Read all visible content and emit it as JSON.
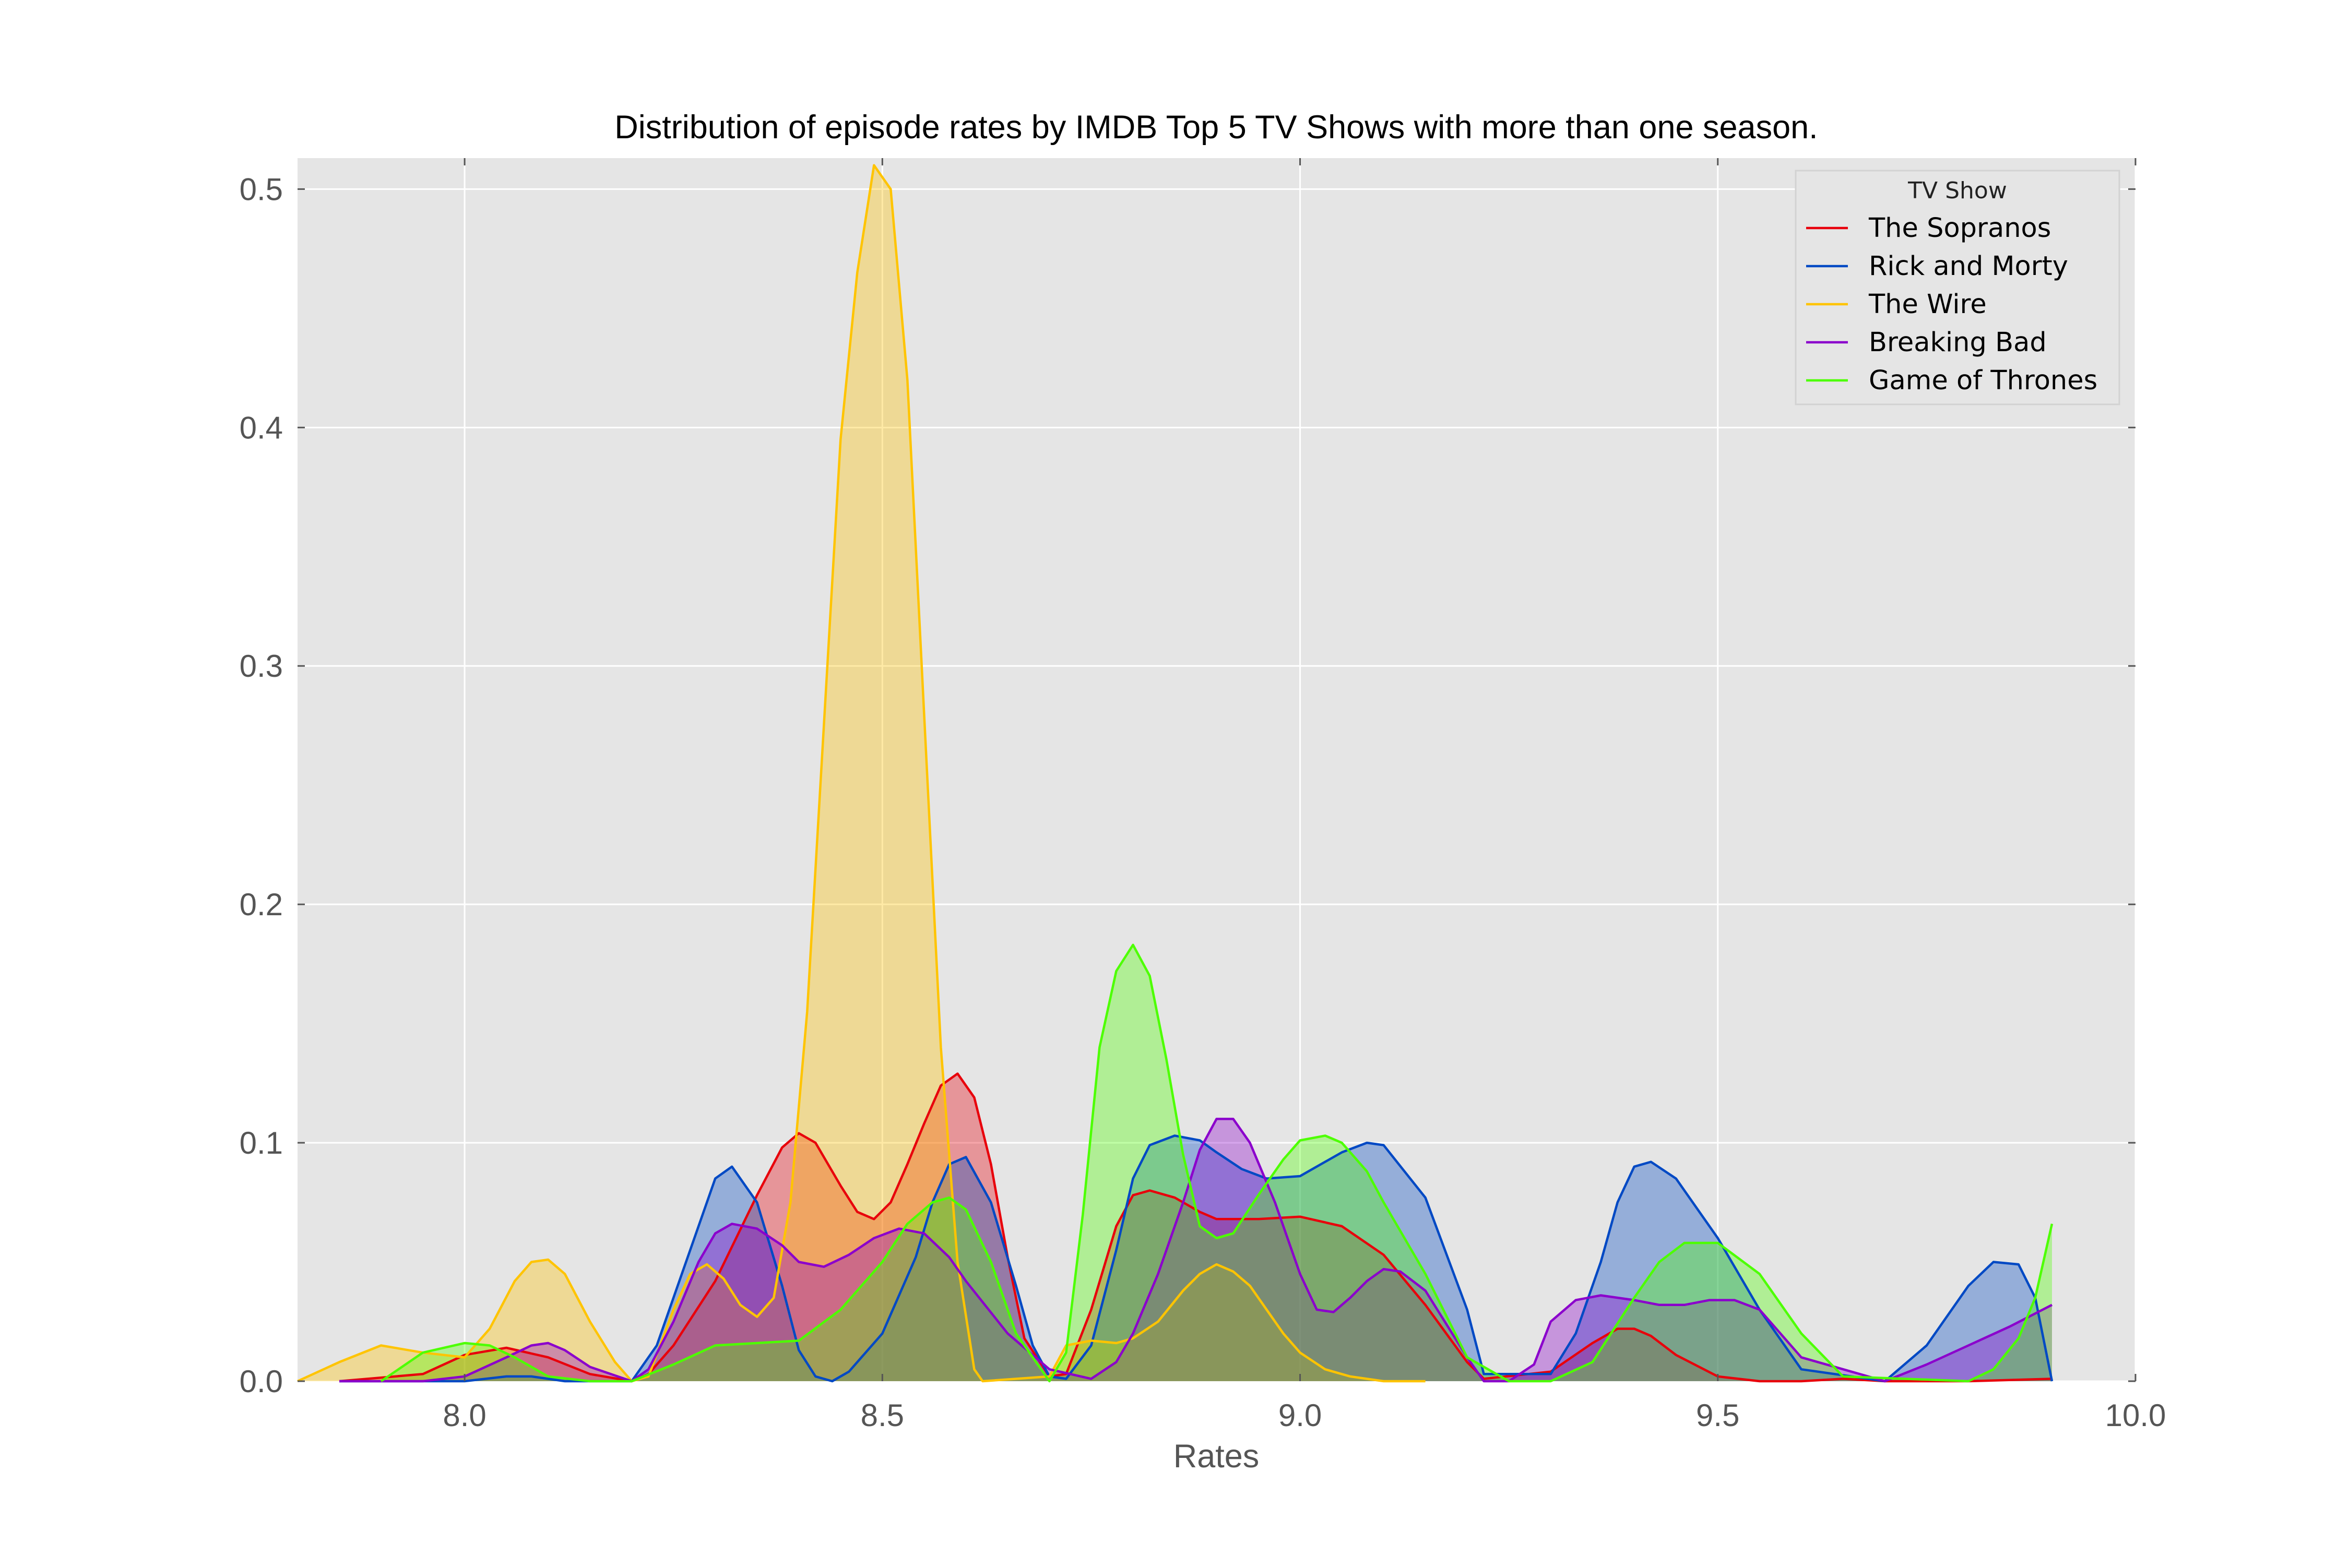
{
  "chart_data": {
    "type": "area",
    "title": "Distribution of episode rates by IMDB Top 5 TV Shows with more than one season.",
    "xlabel": "Rates",
    "ylabel": "",
    "xlim": [
      7.8,
      10.0
    ],
    "ylim": [
      0.0,
      0.513
    ],
    "x_ticks": [
      "8.0",
      "8.5",
      "9.0",
      "9.5",
      "10.0"
    ],
    "x_tick_values": [
      8.0,
      8.5,
      9.0,
      9.5,
      10.0
    ],
    "y_ticks": [
      "0.0",
      "0.1",
      "0.2",
      "0.3",
      "0.4",
      "0.5"
    ],
    "y_tick_values": [
      0.0,
      0.1,
      0.2,
      0.3,
      0.4,
      0.5
    ],
    "grid": true,
    "legend": {
      "title": "TV Show",
      "placement": "top-right"
    },
    "series": [
      {
        "name": "The Sopranos",
        "color": "#e8000b",
        "x": [
          7.85,
          7.95,
          8.0,
          8.05,
          8.1,
          8.15,
          8.2,
          8.22,
          8.25,
          8.3,
          8.35,
          8.38,
          8.4,
          8.42,
          8.45,
          8.47,
          8.49,
          8.51,
          8.53,
          8.55,
          8.57,
          8.59,
          8.61,
          8.63,
          8.65,
          8.67,
          8.7,
          8.72,
          8.75,
          8.78,
          8.8,
          8.82,
          8.85,
          8.88,
          8.9,
          8.95,
          9.0,
          9.05,
          9.1,
          9.15,
          9.2,
          9.22,
          9.3,
          9.35,
          9.38,
          9.4,
          9.42,
          9.45,
          9.5,
          9.55,
          9.6,
          9.65,
          9.7,
          9.8,
          9.9
        ],
        "y": [
          0.0,
          0.003,
          0.011,
          0.014,
          0.01,
          0.003,
          0.0,
          0.003,
          0.015,
          0.042,
          0.078,
          0.098,
          0.104,
          0.1,
          0.082,
          0.071,
          0.068,
          0.075,
          0.091,
          0.108,
          0.124,
          0.129,
          0.119,
          0.091,
          0.052,
          0.018,
          0.002,
          0.003,
          0.03,
          0.065,
          0.078,
          0.08,
          0.077,
          0.071,
          0.068,
          0.068,
          0.069,
          0.065,
          0.053,
          0.032,
          0.008,
          0.001,
          0.004,
          0.016,
          0.022,
          0.022,
          0.019,
          0.011,
          0.002,
          0.0,
          0.0,
          0.001,
          0.0,
          0.0,
          0.001
        ]
      },
      {
        "name": "Rick and Morty",
        "color": "#0049c4",
        "x": [
          7.85,
          8.0,
          8.05,
          8.08,
          8.12,
          8.2,
          8.23,
          8.26,
          8.28,
          8.3,
          8.32,
          8.35,
          8.38,
          8.4,
          8.42,
          8.44,
          8.46,
          8.5,
          8.54,
          8.56,
          8.58,
          8.6,
          8.63,
          8.66,
          8.68,
          8.7,
          8.72,
          8.75,
          8.78,
          8.8,
          8.82,
          8.85,
          8.88,
          8.9,
          8.93,
          8.96,
          9.0,
          9.03,
          9.05,
          9.08,
          9.1,
          9.15,
          9.2,
          9.22,
          9.3,
          9.33,
          9.36,
          9.38,
          9.4,
          9.42,
          9.45,
          9.5,
          9.55,
          9.6,
          9.7,
          9.75,
          9.8,
          9.83,
          9.86,
          9.88,
          9.9
        ],
        "y": [
          0.0,
          0.0,
          0.002,
          0.002,
          0.0,
          0.0,
          0.015,
          0.045,
          0.065,
          0.085,
          0.09,
          0.075,
          0.04,
          0.013,
          0.002,
          0.0,
          0.004,
          0.02,
          0.052,
          0.075,
          0.091,
          0.094,
          0.075,
          0.04,
          0.015,
          0.002,
          0.001,
          0.015,
          0.055,
          0.085,
          0.099,
          0.103,
          0.101,
          0.096,
          0.089,
          0.085,
          0.086,
          0.092,
          0.096,
          0.1,
          0.099,
          0.077,
          0.03,
          0.003,
          0.003,
          0.02,
          0.05,
          0.075,
          0.09,
          0.092,
          0.085,
          0.06,
          0.03,
          0.005,
          0.0,
          0.015,
          0.04,
          0.05,
          0.049,
          0.035,
          0.0
        ]
      },
      {
        "name": "The Wire",
        "color": "#ffc400",
        "x": [
          7.8,
          7.85,
          7.9,
          7.95,
          8.0,
          8.03,
          8.06,
          8.08,
          8.1,
          8.12,
          8.15,
          8.18,
          8.2,
          8.22,
          8.25,
          8.27,
          8.29,
          8.31,
          8.33,
          8.35,
          8.37,
          8.39,
          8.41,
          8.43,
          8.45,
          8.47,
          8.49,
          8.51,
          8.53,
          8.55,
          8.57,
          8.59,
          8.61,
          8.62,
          8.7,
          8.72,
          8.75,
          8.78,
          8.8,
          8.83,
          8.86,
          8.88,
          8.9,
          8.92,
          8.94,
          8.96,
          8.98,
          9.0,
          9.03,
          9.06,
          9.1,
          9.15
        ],
        "y": [
          0.0,
          0.008,
          0.015,
          0.012,
          0.01,
          0.022,
          0.042,
          0.05,
          0.051,
          0.045,
          0.025,
          0.008,
          0.0,
          0.002,
          0.03,
          0.045,
          0.049,
          0.043,
          0.032,
          0.027,
          0.035,
          0.075,
          0.155,
          0.275,
          0.395,
          0.465,
          0.51,
          0.5,
          0.42,
          0.28,
          0.14,
          0.05,
          0.005,
          0.0,
          0.002,
          0.015,
          0.017,
          0.016,
          0.018,
          0.025,
          0.038,
          0.045,
          0.049,
          0.046,
          0.04,
          0.03,
          0.02,
          0.012,
          0.005,
          0.002,
          0.0,
          0.0
        ]
      },
      {
        "name": "Breaking Bad",
        "color": "#8b00cc",
        "x": [
          7.85,
          7.95,
          8.0,
          8.05,
          8.08,
          8.1,
          8.12,
          8.15,
          8.2,
          8.22,
          8.25,
          8.28,
          8.3,
          8.32,
          8.35,
          8.38,
          8.4,
          8.43,
          8.46,
          8.49,
          8.52,
          8.55,
          8.58,
          8.6,
          8.65,
          8.7,
          8.75,
          8.78,
          8.8,
          8.83,
          8.86,
          8.88,
          8.9,
          8.92,
          8.94,
          8.97,
          9.0,
          9.02,
          9.04,
          9.06,
          9.08,
          9.1,
          9.12,
          9.15,
          9.2,
          9.22,
          9.25,
          9.28,
          9.3,
          9.33,
          9.36,
          9.4,
          9.43,
          9.46,
          9.49,
          9.52,
          9.55,
          9.6,
          9.7,
          9.75,
          9.8,
          9.85,
          9.9
        ],
        "y": [
          0.0,
          0.0,
          0.002,
          0.01,
          0.015,
          0.016,
          0.013,
          0.006,
          0.0,
          0.005,
          0.025,
          0.05,
          0.062,
          0.066,
          0.064,
          0.057,
          0.05,
          0.048,
          0.053,
          0.06,
          0.064,
          0.062,
          0.052,
          0.042,
          0.02,
          0.005,
          0.001,
          0.008,
          0.02,
          0.045,
          0.075,
          0.097,
          0.11,
          0.11,
          0.1,
          0.075,
          0.045,
          0.03,
          0.029,
          0.035,
          0.042,
          0.047,
          0.046,
          0.038,
          0.01,
          0.0,
          0.0,
          0.007,
          0.025,
          0.034,
          0.036,
          0.034,
          0.032,
          0.032,
          0.034,
          0.034,
          0.03,
          0.01,
          0.0,
          0.007,
          0.015,
          0.023,
          0.032
        ]
      },
      {
        "name": "Game of Thrones",
        "color": "#4dff00",
        "x": [
          7.9,
          7.95,
          8.0,
          8.03,
          8.06,
          8.1,
          8.15,
          8.2,
          8.25,
          8.3,
          8.35,
          8.4,
          8.45,
          8.5,
          8.53,
          8.56,
          8.58,
          8.6,
          8.63,
          8.66,
          8.7,
          8.72,
          8.74,
          8.76,
          8.78,
          8.8,
          8.82,
          8.84,
          8.86,
          8.88,
          8.9,
          8.92,
          8.95,
          8.98,
          9.0,
          9.03,
          9.05,
          9.08,
          9.1,
          9.15,
          9.2,
          9.25,
          9.3,
          9.35,
          9.4,
          9.43,
          9.46,
          9.5,
          9.55,
          9.6,
          9.65,
          9.8,
          9.83,
          9.86,
          9.88,
          9.9
        ],
        "y": [
          0.0,
          0.012,
          0.016,
          0.015,
          0.01,
          0.002,
          0.0,
          0.0,
          0.007,
          0.015,
          0.016,
          0.017,
          0.03,
          0.05,
          0.066,
          0.075,
          0.077,
          0.072,
          0.05,
          0.02,
          0.0,
          0.012,
          0.07,
          0.14,
          0.172,
          0.183,
          0.17,
          0.135,
          0.095,
          0.065,
          0.06,
          0.062,
          0.078,
          0.093,
          0.101,
          0.103,
          0.1,
          0.088,
          0.075,
          0.045,
          0.01,
          0.0,
          0.0,
          0.008,
          0.035,
          0.05,
          0.058,
          0.058,
          0.045,
          0.02,
          0.002,
          0.0,
          0.005,
          0.018,
          0.035,
          0.066
        ]
      }
    ]
  }
}
